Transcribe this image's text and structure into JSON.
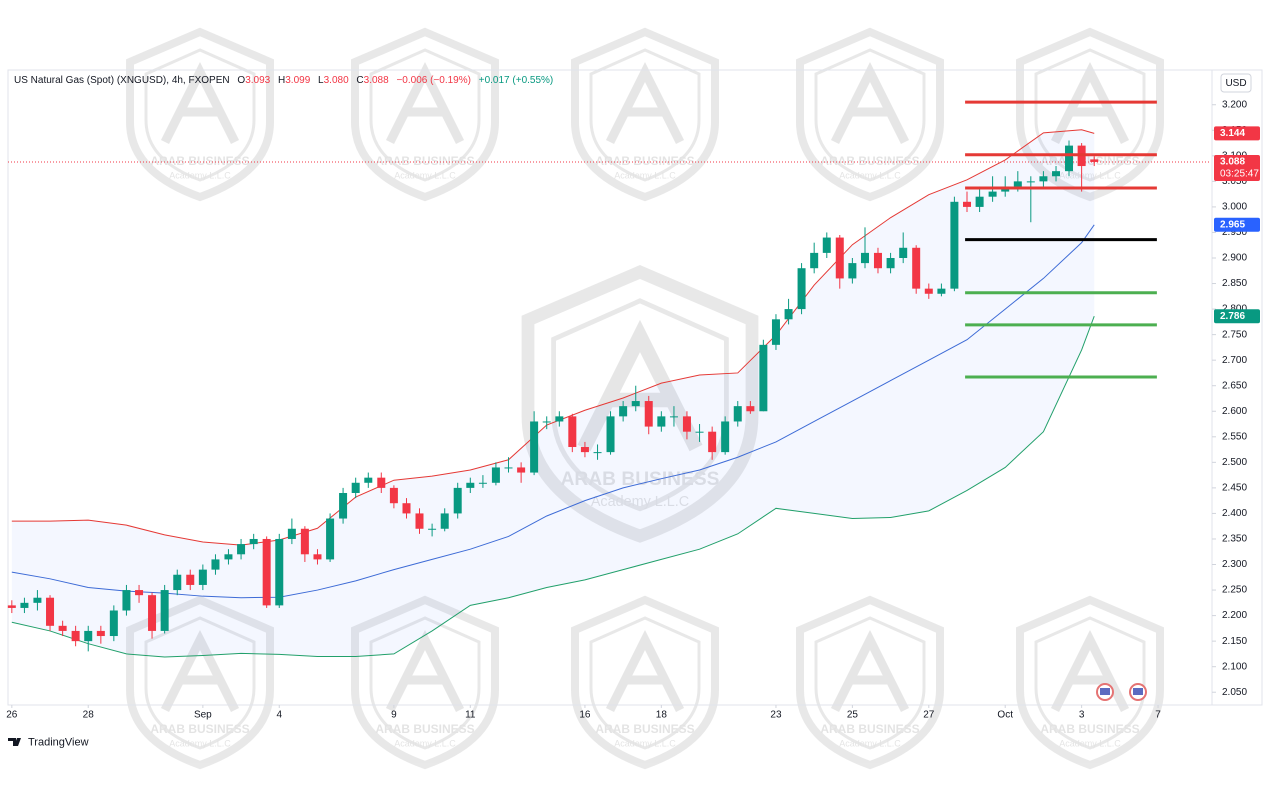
{
  "chart_data": {
    "type": "candlestick",
    "title": "US Natural Gas (Spot) (XNGUSD), 4h, FXOPEN",
    "ohlc": [
      {
        "key": "O",
        "value": 3.093,
        "label": "3.093"
      },
      {
        "key": "H",
        "value": 3.099,
        "label": "3.099"
      },
      {
        "key": "L",
        "value": 3.08,
        "label": "3.080"
      },
      {
        "key": "C",
        "value": 3.088,
        "label": "3.088"
      }
    ],
    "change": "−0.006 (−0.19%)",
    "change_after": "+0.017 (+0.55%)",
    "currency": "USD",
    "brand": "TradingView",
    "watermark": {
      "name": "ARAB BUSINESS",
      "sub": "Academy L.L.C"
    },
    "up_color": "#089981",
    "down_color": "#f23645",
    "x": [
      0,
      0.33,
      0.67,
      1,
      1.33,
      1.67,
      2,
      2.33,
      2.67,
      3,
      3.33,
      3.67,
      4,
      4.33,
      4.67,
      5,
      5.33,
      5.67,
      6,
      6.33,
      6.67,
      7,
      7.33,
      7.67,
      8,
      8.33,
      8.67,
      9,
      9.33,
      9.67,
      10,
      10.33,
      10.67,
      11,
      11.33,
      11.67,
      12,
      12.33,
      12.67,
      13,
      13.33,
      13.67,
      14,
      14.33,
      14.67,
      15,
      15.33,
      15.67,
      16,
      16.33,
      16.67,
      17,
      17.33,
      17.67,
      18,
      18.33,
      18.67,
      19,
      19.33,
      19.67,
      20,
      20.33,
      20.67,
      21,
      21.33,
      21.67,
      22,
      22.33,
      22.67,
      23,
      23.33,
      23.67,
      24,
      24.33,
      24.67,
      25,
      25.33,
      25.67,
      26,
      26.33,
      26.67,
      27,
      27.33,
      27.67,
      28,
      28.33
    ],
    "open": [
      2.22,
      2.215,
      2.225,
      2.235,
      2.18,
      2.17,
      2.15,
      2.17,
      2.16,
      2.21,
      2.25,
      2.24,
      2.17,
      2.25,
      2.28,
      2.26,
      2.29,
      2.31,
      2.32,
      2.34,
      2.35,
      2.22,
      2.35,
      2.37,
      2.32,
      2.31,
      2.39,
      2.44,
      2.46,
      2.47,
      2.45,
      2.42,
      2.4,
      2.37,
      2.37,
      2.4,
      2.45,
      2.46,
      2.46,
      2.49,
      2.49,
      2.48,
      2.58,
      2.58,
      2.59,
      2.53,
      2.52,
      2.52,
      2.59,
      2.61,
      2.62,
      2.57,
      2.59,
      2.59,
      2.56,
      2.56,
      2.52,
      2.58,
      2.61,
      2.6,
      2.73,
      2.78,
      2.8,
      2.88,
      2.91,
      2.94,
      2.86,
      2.89,
      2.91,
      2.88,
      2.9,
      2.92,
      2.84,
      2.83,
      2.84,
      3.01,
      3.0,
      3.02,
      3.03,
      3.04,
      3.05,
      3.05,
      3.06,
      3.07,
      3.12,
      3.093
    ],
    "high": [
      2.23,
      2.235,
      2.25,
      2.24,
      2.19,
      2.18,
      2.18,
      2.18,
      2.22,
      2.26,
      2.26,
      2.245,
      2.26,
      2.29,
      2.29,
      2.3,
      2.32,
      2.33,
      2.35,
      2.36,
      2.355,
      2.36,
      2.39,
      2.375,
      2.33,
      2.4,
      2.45,
      2.47,
      2.48,
      2.48,
      2.455,
      2.43,
      2.41,
      2.38,
      2.41,
      2.46,
      2.47,
      2.475,
      2.5,
      2.51,
      2.5,
      2.6,
      2.59,
      2.6,
      2.595,
      2.54,
      2.535,
      2.6,
      2.62,
      2.65,
      2.63,
      2.6,
      2.61,
      2.6,
      2.575,
      2.57,
      2.59,
      2.62,
      2.62,
      2.74,
      2.79,
      2.82,
      2.89,
      2.93,
      2.95,
      2.945,
      2.9,
      2.96,
      2.92,
      2.91,
      2.95,
      2.925,
      2.85,
      2.85,
      3.02,
      3.03,
      3.04,
      3.06,
      3.06,
      3.07,
      3.06,
      3.07,
      3.08,
      3.13,
      3.125,
      3.099
    ],
    "low": [
      2.205,
      2.205,
      2.21,
      2.17,
      2.16,
      2.14,
      2.13,
      2.145,
      2.15,
      2.2,
      2.225,
      2.155,
      2.165,
      2.24,
      2.25,
      2.25,
      2.28,
      2.3,
      2.31,
      2.33,
      2.215,
      2.215,
      2.34,
      2.305,
      2.3,
      2.305,
      2.38,
      2.43,
      2.45,
      2.44,
      2.41,
      2.39,
      2.36,
      2.355,
      2.365,
      2.39,
      2.44,
      2.45,
      2.455,
      2.48,
      2.46,
      2.475,
      2.565,
      2.57,
      2.52,
      2.51,
      2.505,
      2.515,
      2.58,
      2.6,
      2.555,
      2.56,
      2.57,
      2.545,
      2.54,
      2.505,
      2.515,
      2.57,
      2.595,
      2.6,
      2.72,
      2.77,
      2.79,
      2.87,
      2.9,
      2.84,
      2.85,
      2.88,
      2.87,
      2.87,
      2.89,
      2.83,
      2.82,
      2.825,
      2.835,
      2.99,
      2.99,
      3.01,
      3.02,
      3.03,
      2.97,
      3.04,
      3.05,
      3.06,
      3.03,
      3.08
    ],
    "close": [
      2.215,
      2.225,
      2.235,
      2.18,
      2.17,
      2.15,
      2.17,
      2.16,
      2.21,
      2.25,
      2.24,
      2.17,
      2.25,
      2.28,
      2.26,
      2.29,
      2.31,
      2.32,
      2.34,
      2.35,
      2.22,
      2.35,
      2.37,
      2.32,
      2.31,
      2.39,
      2.44,
      2.46,
      2.47,
      2.45,
      2.42,
      2.4,
      2.37,
      2.37,
      2.4,
      2.45,
      2.46,
      2.46,
      2.49,
      2.49,
      2.48,
      2.58,
      2.58,
      2.59,
      2.53,
      2.52,
      2.52,
      2.59,
      2.61,
      2.62,
      2.57,
      2.59,
      2.59,
      2.56,
      2.56,
      2.52,
      2.58,
      2.61,
      2.6,
      2.73,
      2.78,
      2.8,
      2.88,
      2.91,
      2.94,
      2.86,
      2.89,
      2.91,
      2.88,
      2.9,
      2.92,
      2.84,
      2.83,
      2.84,
      3.01,
      3.0,
      3.02,
      3.03,
      3.04,
      3.05,
      3.05,
      3.06,
      3.07,
      3.12,
      3.08,
      3.088
    ],
    "series": [
      {
        "color": "#e53935",
        "x": [
          0,
          1,
          2,
          3,
          4,
          5,
          6,
          7,
          8,
          9,
          10,
          11,
          12,
          13,
          14,
          15,
          16,
          17,
          18,
          19,
          20,
          21,
          22,
          23,
          24,
          25,
          26,
          27,
          28,
          28.33
        ],
        "values": [
          2.385,
          2.385,
          2.387,
          2.377,
          2.358,
          2.344,
          2.338,
          2.348,
          2.371,
          2.432,
          2.465,
          2.473,
          2.485,
          2.505,
          2.573,
          2.602,
          2.626,
          2.655,
          2.671,
          2.675,
          2.749,
          2.847,
          2.926,
          2.979,
          3.024,
          3.053,
          3.092,
          3.145,
          3.151,
          3.144
        ]
      },
      {
        "color": "#3d6bd6",
        "x": [
          0,
          1,
          2,
          3,
          4,
          5,
          6,
          7,
          8,
          9,
          10,
          11,
          12,
          13,
          14,
          15,
          16,
          17,
          18,
          19,
          20,
          21,
          22,
          23,
          24,
          25,
          26,
          27,
          28,
          28.33
        ],
        "values": [
          2.285,
          2.272,
          2.255,
          2.248,
          2.244,
          2.238,
          2.235,
          2.236,
          2.25,
          2.268,
          2.29,
          2.31,
          2.33,
          2.355,
          2.395,
          2.425,
          2.45,
          2.468,
          2.485,
          2.51,
          2.54,
          2.58,
          2.62,
          2.66,
          2.7,
          2.74,
          2.8,
          2.86,
          2.93,
          2.965
        ]
      },
      {
        "color": "#22a06b",
        "x": [
          0,
          1,
          2,
          3,
          4,
          5,
          6,
          7,
          8,
          9,
          10,
          11,
          12,
          13,
          14,
          15,
          16,
          17,
          18,
          19,
          20,
          21,
          22,
          23,
          24,
          25,
          26,
          27,
          28,
          28.33
        ],
        "values": [
          2.187,
          2.17,
          2.145,
          2.125,
          2.119,
          2.122,
          2.126,
          2.124,
          2.12,
          2.12,
          2.125,
          2.17,
          2.22,
          2.235,
          2.255,
          2.27,
          2.29,
          2.31,
          2.33,
          2.36,
          2.41,
          2.4,
          2.39,
          2.392,
          2.405,
          2.445,
          2.49,
          2.56,
          2.72,
          2.786
        ]
      }
    ],
    "band_fill": "#2962ff",
    "levels": [
      {
        "value": 3.205,
        "color": "#e53935",
        "from": 24.95,
        "to": 29.97
      },
      {
        "value": 3.102,
        "color": "#e53935",
        "from": 24.95,
        "to": 29.97
      },
      {
        "value": 3.037,
        "color": "#e53935",
        "from": 24.95,
        "to": 29.97
      },
      {
        "value": 2.936,
        "color": "#000000",
        "from": 24.95,
        "to": 29.97
      },
      {
        "value": 2.832,
        "color": "#4caf50",
        "from": 24.95,
        "to": 29.97
      },
      {
        "value": 2.769,
        "color": "#4caf50",
        "from": 24.95,
        "to": 29.97
      },
      {
        "value": 2.667,
        "color": "#4caf50",
        "from": 24.95,
        "to": 29.97
      }
    ],
    "price_labels": [
      {
        "value": 3.144,
        "color": "#f23645"
      },
      {
        "value": 3.088,
        "color": "#f23645",
        "countdown": "03:25:47"
      },
      {
        "value": 2.965,
        "color": "#2962ff"
      },
      {
        "value": 2.786,
        "color": "#089981"
      }
    ],
    "last_price_line": 3.088,
    "xlim": [
      -0.1,
      31.36
    ],
    "ylim": [
      2.025,
      3.268
    ],
    "xticks": [
      {
        "value": 0,
        "label": "26"
      },
      {
        "value": 2,
        "label": "28"
      },
      {
        "value": 5,
        "label": "Sep"
      },
      {
        "value": 7,
        "label": "4"
      },
      {
        "value": 10,
        "label": "9"
      },
      {
        "value": 12,
        "label": "11"
      },
      {
        "value": 15,
        "label": "16"
      },
      {
        "value": 17,
        "label": "18"
      },
      {
        "value": 20,
        "label": "23"
      },
      {
        "value": 22,
        "label": "25"
      },
      {
        "value": 24,
        "label": "27"
      },
      {
        "value": 26,
        "label": "Oct"
      },
      {
        "value": 28,
        "label": "3"
      },
      {
        "value": 30,
        "label": "7"
      }
    ],
    "yticks": [
      {
        "value": 2.05,
        "label": "2.050"
      },
      {
        "value": 2.1,
        "label": "2.100"
      },
      {
        "value": 2.15,
        "label": "2.150"
      },
      {
        "value": 2.2,
        "label": "2.200"
      },
      {
        "value": 2.25,
        "label": "2.250"
      },
      {
        "value": 2.3,
        "label": "2.300"
      },
      {
        "value": 2.35,
        "label": "2.350"
      },
      {
        "value": 2.4,
        "label": "2.400"
      },
      {
        "value": 2.45,
        "label": "2.450"
      },
      {
        "value": 2.5,
        "label": "2.500"
      },
      {
        "value": 2.55,
        "label": "2.550"
      },
      {
        "value": 2.6,
        "label": "2.600"
      },
      {
        "value": 2.65,
        "label": "2.650"
      },
      {
        "value": 2.7,
        "label": "2.700"
      },
      {
        "value": 2.75,
        "label": "2.750"
      },
      {
        "value": 2.8,
        "label": "2.800"
      },
      {
        "value": 2.85,
        "label": "2.850"
      },
      {
        "value": 2.9,
        "label": "2.900"
      },
      {
        "value": 2.95,
        "label": "2.950"
      },
      {
        "value": 3.0,
        "label": "3.000"
      },
      {
        "value": 3.05,
        "label": "3.050"
      },
      {
        "value": 3.1,
        "label": "3.100"
      },
      {
        "value": 3.15,
        "label": "3.150"
      },
      {
        "value": 3.2,
        "label": "3.200"
      }
    ],
    "grid": false
  }
}
